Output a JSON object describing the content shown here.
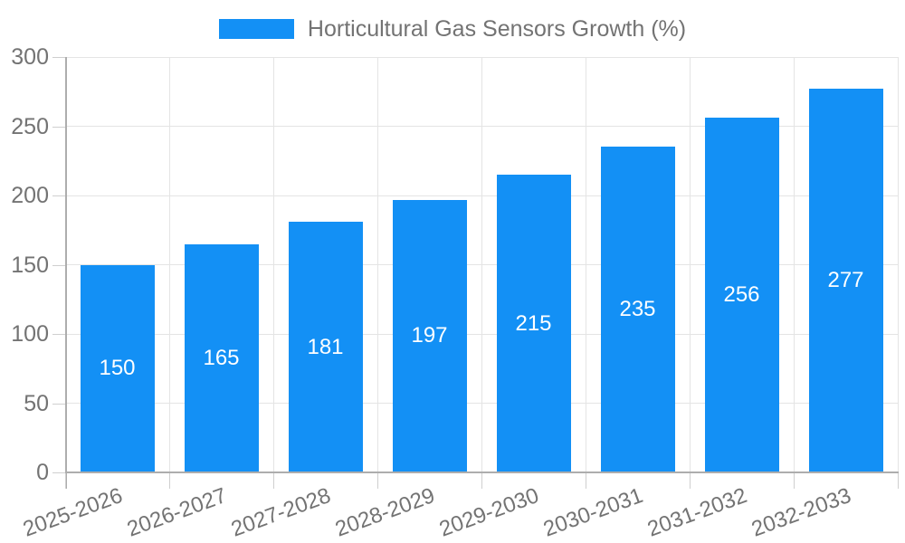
{
  "chart_data": {
    "type": "bar",
    "title": "",
    "legend": "Horticultural Gas Sensors Growth (%)",
    "legend_position": "top-center",
    "categories": [
      "2025-2026",
      "2026-2027",
      "2027-2028",
      "2028-2029",
      "2029-2030",
      "2030-2031",
      "2031-2032",
      "2032-2033"
    ],
    "series": [
      {
        "name": "Horticultural Gas Sensors Growth (%)",
        "values": [
          150,
          165,
          181,
          197,
          215,
          235,
          256,
          277
        ]
      }
    ],
    "values": [
      150,
      165,
      181,
      197,
      215,
      235,
      256,
      277
    ],
    "value_labels_shown": true,
    "value_label_position": "center-inside-bar",
    "xlabel": "",
    "ylabel": "",
    "ylim": [
      0,
      300
    ],
    "yticks": [
      0,
      50,
      100,
      150,
      200,
      250,
      300
    ],
    "grid": true,
    "x_label_rotation_deg": 20,
    "colors": {
      "bar": "#1390F5",
      "value_label": "#FFFFFF",
      "tick_text": "#737373",
      "legend_text": "#737373",
      "grid": "#E4E4E4",
      "tick": "#CFCFCF",
      "axis": "#ADADAD",
      "background": "#FFFFFF"
    }
  }
}
